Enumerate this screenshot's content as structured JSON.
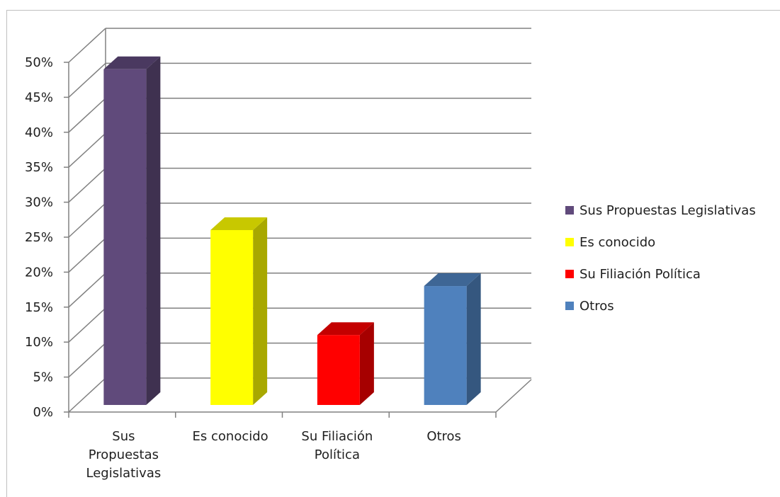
{
  "chart_data": {
    "type": "bar",
    "style": "3d-clustered-column",
    "categories": [
      [
        "Sus",
        "Propuestas",
        "Legislativas"
      ],
      [
        "Es conocido"
      ],
      [
        "Su Filiación",
        "Política"
      ],
      [
        "Otros"
      ]
    ],
    "values": [
      0.48,
      0.25,
      0.1,
      0.17
    ],
    "ylim": [
      0,
      0.5
    ],
    "yticks": [
      0,
      0.05,
      0.1,
      0.15,
      0.2,
      0.25,
      0.3,
      0.35,
      0.4,
      0.45,
      0.5
    ],
    "ytick_labels": [
      "0%",
      "5%",
      "10%",
      "15%",
      "20%",
      "25%",
      "30%",
      "35%",
      "40%",
      "45%",
      "50%"
    ],
    "grid": true,
    "legend_position": "right",
    "legend": [
      {
        "label": "Sus Propuestas Legislativas",
        "color": "#604a7b"
      },
      {
        "label": "Es conocido",
        "color": "#ffff00"
      },
      {
        "label": "Su Filiación Política",
        "color": "#ff0000"
      },
      {
        "label": "Otros",
        "color": "#4f81bd"
      }
    ],
    "colors": {
      "front": [
        "#604a7b",
        "#ffff00",
        "#ff0000",
        "#4f81bd"
      ],
      "side": [
        "#3f3150",
        "#a8a800",
        "#a60000",
        "#35577f"
      ],
      "top": [
        "#4a3960",
        "#c8c800",
        "#c40000",
        "#3e6695"
      ],
      "grid": "#808080"
    }
  }
}
